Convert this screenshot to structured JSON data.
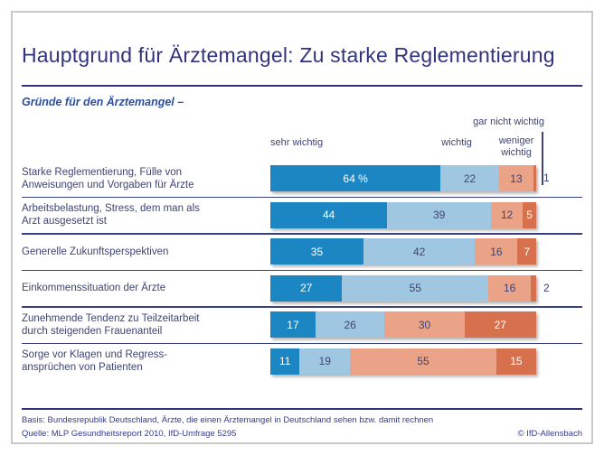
{
  "page": {
    "title": "Hauptgrund für Ärztemangel: Zu starke Reglementierung",
    "subtitle": "Gründe für den Ärztemangel –",
    "footer": {
      "basis": "Basis: Bundesrepublik Deutschland, Ärzte, die einen Ärztemangel in Deutschland sehen bzw. damit rechnen",
      "quelle": "Quelle: MLP Gesundheitsreport 2010, IfD-Umfrage 5295",
      "copyright": "© IfD-Allensbach"
    }
  },
  "chart_data": {
    "type": "bar",
    "orientation": "horizontal-stacked",
    "unit": "%",
    "xlim": [
      0,
      100
    ],
    "title": "Hauptgrund für Ärztemangel: Zu starke Reglementierung",
    "subtitle": "Gründe für den Ärztemangel –",
    "series_labels": [
      "sehr wichtig",
      "wichtig",
      "weniger wichtig",
      "gar nicht wichtig"
    ],
    "series_keys": [
      "sehr-wichtig",
      "wichtig",
      "weniger-wichtig",
      "gar-nicht-wichtig"
    ],
    "colors": [
      "#1b86c1",
      "#9fc7e2",
      "#eaa386",
      "#d7714d"
    ],
    "value_text_colors": [
      "#ffffff",
      "#3e4473",
      "#3e4473",
      "#ffffff"
    ],
    "categories": [
      "Starke Reglementierung, Fülle von Anweisungen und Vorgaben für Ärzte",
      "Arbeitsbelastung, Stress, dem man als Arzt ausgesetzt ist",
      "Generelle Zukunftsperspektiven",
      "Einkommenssituation der Ärzte",
      "Zunehmende Tendenz zu Teilzeitarbeit durch steigenden Frauenanteil",
      "Sorge vor Klagen und Regress-ansprüchen von Patienten"
    ],
    "rows": [
      {
        "label": "Starke Reglementierung, Fülle von\nAnweisungen und Vorgaben für Ärzte",
        "values": [
          64,
          22,
          13,
          1
        ],
        "display": [
          "64 %",
          "22",
          "13",
          "1"
        ],
        "outside": [
          false,
          false,
          false,
          true
        ]
      },
      {
        "label": "Arbeitsbelastung, Stress, dem man als\nArzt ausgesetzt ist",
        "values": [
          44,
          39,
          12,
          5
        ],
        "display": [
          "44",
          "39",
          "12",
          "5"
        ],
        "outside": [
          false,
          false,
          false,
          false
        ]
      },
      {
        "label": "Generelle Zukunftsperspektiven",
        "values": [
          35,
          42,
          16,
          7
        ],
        "display": [
          "35",
          "42",
          "16",
          "7"
        ],
        "outside": [
          false,
          false,
          false,
          false
        ]
      },
      {
        "label": "Einkommenssituation der Ärzte",
        "values": [
          27,
          55,
          16,
          2
        ],
        "display": [
          "27",
          "55",
          "16",
          "2"
        ],
        "outside": [
          false,
          false,
          false,
          true
        ]
      },
      {
        "label": "Zunehmende Tendenz zu Teilzeitarbeit\ndurch steigenden Frauenanteil",
        "values": [
          17,
          26,
          30,
          27
        ],
        "display": [
          "17",
          "26",
          "30",
          "27"
        ],
        "outside": [
          false,
          false,
          false,
          false
        ]
      },
      {
        "label": "Sorge vor Klagen und Regress-\nansprüchen von Patienten",
        "values": [
          11,
          19,
          55,
          15
        ],
        "display": [
          "11",
          "19",
          "55",
          "15"
        ],
        "outside": [
          false,
          false,
          false,
          false
        ]
      }
    ]
  }
}
